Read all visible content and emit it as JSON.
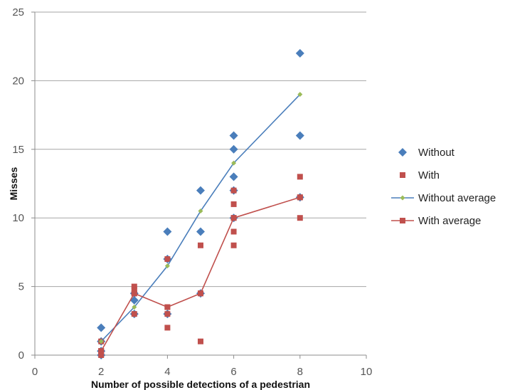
{
  "chart_data": {
    "type": "scatter",
    "title": "",
    "xlabel": "Number of possible detections of a pedestrian",
    "ylabel": "Misses",
    "xlim": [
      0,
      10
    ],
    "ylim": [
      0,
      25
    ],
    "xticks": [
      0,
      2,
      4,
      6,
      8,
      10
    ],
    "yticks": [
      0,
      5,
      10,
      15,
      20,
      25
    ],
    "grid": "horizontal",
    "legend_position": "right",
    "series": [
      {
        "name": "Without",
        "kind": "markers",
        "marker": "diamond",
        "color": "#4a7ebb",
        "points": [
          [
            2,
            0
          ],
          [
            2,
            0.3
          ],
          [
            2,
            1
          ],
          [
            2,
            2
          ],
          [
            3,
            3
          ],
          [
            3,
            4
          ],
          [
            3,
            4.5
          ],
          [
            4,
            3
          ],
          [
            4,
            7
          ],
          [
            4,
            9
          ],
          [
            5,
            4.5
          ],
          [
            5,
            9
          ],
          [
            5,
            12
          ],
          [
            6,
            10
          ],
          [
            6,
            12
          ],
          [
            6,
            13
          ],
          [
            6,
            15
          ],
          [
            6,
            16
          ],
          [
            8,
            11.5
          ],
          [
            8,
            16
          ],
          [
            8,
            22
          ]
        ]
      },
      {
        "name": "With",
        "kind": "markers",
        "marker": "square",
        "color": "#c0504d",
        "points": [
          [
            2,
            0
          ],
          [
            2,
            0.3
          ],
          [
            2,
            1
          ],
          [
            3,
            3
          ],
          [
            3,
            4.5
          ],
          [
            3,
            4.8
          ],
          [
            3,
            5
          ],
          [
            4,
            2
          ],
          [
            4,
            3
          ],
          [
            4,
            3.5
          ],
          [
            4,
            7
          ],
          [
            5,
            1
          ],
          [
            5,
            4.5
          ],
          [
            5,
            8
          ],
          [
            6,
            8
          ],
          [
            6,
            9
          ],
          [
            6,
            10
          ],
          [
            6,
            11
          ],
          [
            6,
            12
          ],
          [
            8,
            10
          ],
          [
            8,
            11.5
          ],
          [
            8,
            13
          ]
        ]
      },
      {
        "name": "Without average",
        "kind": "line",
        "marker": "diamond",
        "color": "#4a7ebb",
        "marker_color": "#9bbb59",
        "points": [
          [
            2,
            1
          ],
          [
            3,
            3.5
          ],
          [
            4,
            6.5
          ],
          [
            5,
            10.5
          ],
          [
            6,
            14
          ],
          [
            8,
            19
          ]
        ]
      },
      {
        "name": "With average",
        "kind": "line",
        "marker": "square",
        "color": "#c0504d",
        "marker_color": "#c0504d",
        "points": [
          [
            2,
            0.3
          ],
          [
            3,
            4.5
          ],
          [
            4,
            3.5
          ],
          [
            5,
            4.5
          ],
          [
            6,
            10
          ],
          [
            8,
            11.5
          ]
        ]
      }
    ]
  }
}
